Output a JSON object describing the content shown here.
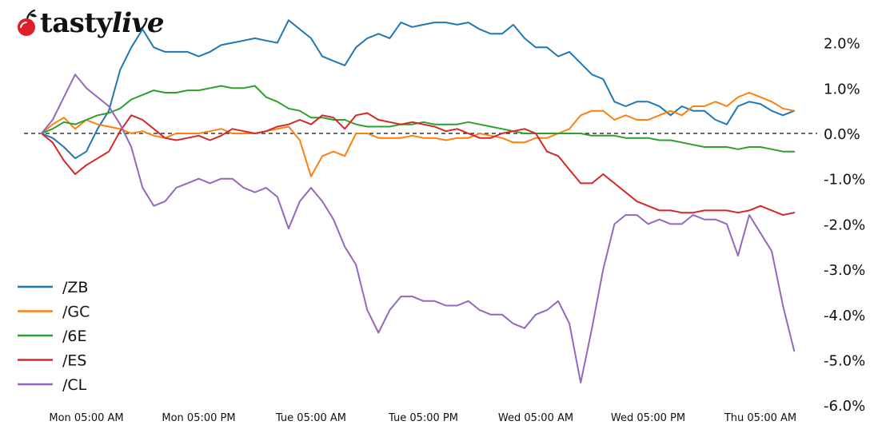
{
  "brand": {
    "logo_text_a": "tasty",
    "logo_text_b": "live",
    "logo_color": "#e11d2a"
  },
  "chart_data": {
    "type": "line",
    "title": "",
    "xlabel": "",
    "ylabel": "",
    "y_axis_position": "right",
    "ylim": [
      -6,
      2.6
    ],
    "yticks": [
      2,
      1,
      0,
      -1,
      -2,
      -3,
      -4,
      -5,
      -6
    ],
    "ytick_labels": [
      "2.0%",
      "1.0%",
      "0.0%",
      "-1.0%",
      "-2.0%",
      "-3.0%",
      "-4.0%",
      "-5.0%",
      "-6.0%"
    ],
    "xlim": [
      0,
      66
    ],
    "xticks": [
      0,
      10,
      20,
      30,
      40,
      50,
      60
    ],
    "xtick_labels": [
      "Mon 05:00 AM",
      "Mon 05:00 PM",
      "Tue 05:00 AM",
      "Tue 05:00 PM",
      "Wed 05:00 AM",
      "Wed 05:00 PM",
      "Thu 05:00 AM"
    ],
    "zero_line": "dashed",
    "grid": false,
    "legend_position": "bottom-left",
    "series": [
      {
        "name": "/ZB",
        "color": "#1f77b4",
        "x": [
          -4,
          -3,
          -2,
          -1,
          0,
          1,
          2,
          3,
          4,
          5,
          6,
          7,
          8,
          9,
          10,
          11,
          12,
          13,
          14,
          15,
          16,
          17,
          18,
          19,
          20,
          21,
          22,
          23,
          24,
          25,
          26,
          27,
          28,
          29,
          30,
          31,
          32,
          33,
          34,
          35,
          36,
          37,
          38,
          39,
          40,
          41,
          42,
          43,
          44,
          45,
          46,
          47,
          48,
          49,
          50,
          51,
          52,
          53,
          54,
          55,
          56,
          57,
          58,
          59,
          60,
          61,
          62,
          63
        ],
        "y": [
          0,
          -0.1,
          -0.3,
          -0.55,
          -0.4,
          0.1,
          0.5,
          1.4,
          1.9,
          2.3,
          1.9,
          1.8,
          1.8,
          1.8,
          1.7,
          1.8,
          1.95,
          2.0,
          2.05,
          2.1,
          2.05,
          2.0,
          2.5,
          2.3,
          2.1,
          1.7,
          1.6,
          1.5,
          1.9,
          2.1,
          2.2,
          2.1,
          2.45,
          2.35,
          2.4,
          2.45,
          2.45,
          2.4,
          2.45,
          2.3,
          2.2,
          2.2,
          2.4,
          2.1,
          1.9,
          1.9,
          1.7,
          1.8,
          1.55,
          1.3,
          1.2,
          0.7,
          0.6,
          0.7,
          0.7,
          0.6,
          0.4,
          0.6,
          0.5,
          0.5,
          0.3,
          0.2,
          0.6,
          0.7,
          0.65,
          0.5,
          0.4,
          0.5
        ]
      },
      {
        "name": "/GC",
        "color": "#ff7f0e",
        "x": [
          -4,
          -3,
          -2,
          -1,
          0,
          1,
          2,
          3,
          4,
          5,
          6,
          7,
          8,
          9,
          10,
          11,
          12,
          13,
          14,
          15,
          16,
          17,
          18,
          19,
          20,
          21,
          22,
          23,
          24,
          25,
          26,
          27,
          28,
          29,
          30,
          31,
          32,
          33,
          34,
          35,
          36,
          37,
          38,
          39,
          40,
          41,
          42,
          43,
          44,
          45,
          46,
          47,
          48,
          49,
          50,
          51,
          52,
          53,
          54,
          55,
          56,
          57,
          58,
          59,
          60,
          61,
          62,
          63
        ],
        "y": [
          0,
          0.2,
          0.35,
          0.1,
          0.3,
          0.2,
          0.15,
          0.1,
          0,
          0.05,
          -0.05,
          -0.1,
          0,
          0,
          0,
          0.05,
          0.1,
          0,
          0,
          0,
          0.05,
          0.1,
          0.15,
          -0.15,
          -0.95,
          -0.5,
          -0.4,
          -0.5,
          0,
          0,
          -0.1,
          -0.1,
          -0.1,
          -0.05,
          -0.1,
          -0.1,
          -0.15,
          -0.1,
          -0.1,
          0,
          -0.05,
          -0.1,
          -0.2,
          -0.2,
          -0.1,
          -0.1,
          0,
          0.1,
          0.4,
          0.5,
          0.5,
          0.3,
          0.4,
          0.3,
          0.3,
          0.4,
          0.5,
          0.4,
          0.6,
          0.6,
          0.7,
          0.6,
          0.8,
          0.9,
          0.8,
          0.7,
          0.55,
          0.5
        ]
      },
      {
        "name": "/6E",
        "color": "#2ca02c",
        "x": [
          -4,
          -3,
          -2,
          -1,
          0,
          1,
          2,
          3,
          4,
          5,
          6,
          7,
          8,
          9,
          10,
          11,
          12,
          13,
          14,
          15,
          16,
          17,
          18,
          19,
          20,
          21,
          22,
          23,
          24,
          25,
          26,
          27,
          28,
          29,
          30,
          31,
          32,
          33,
          34,
          35,
          36,
          37,
          38,
          39,
          40,
          41,
          42,
          43,
          44,
          45,
          46,
          47,
          48,
          49,
          50,
          51,
          52,
          53,
          54,
          55,
          56,
          57,
          58,
          59,
          60,
          61,
          62,
          63
        ],
        "y": [
          0,
          0.1,
          0.25,
          0.2,
          0.3,
          0.4,
          0.45,
          0.55,
          0.75,
          0.85,
          0.95,
          0.9,
          0.9,
          0.95,
          0.95,
          1.0,
          1.05,
          1.0,
          1.0,
          1.05,
          0.8,
          0.7,
          0.55,
          0.5,
          0.35,
          0.35,
          0.3,
          0.3,
          0.2,
          0.15,
          0.15,
          0.15,
          0.2,
          0.2,
          0.25,
          0.2,
          0.2,
          0.2,
          0.25,
          0.2,
          0.15,
          0.1,
          0.05,
          0,
          0,
          0,
          0,
          0,
          0,
          -0.05,
          -0.05,
          -0.05,
          -0.1,
          -0.1,
          -0.1,
          -0.15,
          -0.15,
          -0.2,
          -0.25,
          -0.3,
          -0.3,
          -0.3,
          -0.35,
          -0.3,
          -0.3,
          -0.35,
          -0.4,
          -0.4
        ]
      },
      {
        "name": "/ES",
        "color": "#d62728",
        "x": [
          -4,
          -3,
          -2,
          -1,
          0,
          1,
          2,
          3,
          4,
          5,
          6,
          7,
          8,
          9,
          10,
          11,
          12,
          13,
          14,
          15,
          16,
          17,
          18,
          19,
          20,
          21,
          22,
          23,
          24,
          25,
          26,
          27,
          28,
          29,
          30,
          31,
          32,
          33,
          34,
          35,
          36,
          37,
          38,
          39,
          40,
          41,
          42,
          43,
          44,
          45,
          46,
          47,
          48,
          49,
          50,
          51,
          52,
          53,
          54,
          55,
          56,
          57,
          58,
          59,
          60,
          61,
          62,
          63
        ],
        "y": [
          0,
          -0.2,
          -0.6,
          -0.9,
          -0.7,
          -0.55,
          -0.4,
          0.05,
          0.4,
          0.3,
          0.1,
          -0.1,
          -0.15,
          -0.1,
          -0.05,
          -0.15,
          -0.05,
          0.1,
          0.05,
          0,
          0.05,
          0.15,
          0.2,
          0.3,
          0.2,
          0.4,
          0.35,
          0.1,
          0.4,
          0.45,
          0.3,
          0.25,
          0.2,
          0.25,
          0.2,
          0.15,
          0.05,
          0.1,
          0,
          -0.1,
          -0.1,
          0,
          0.05,
          0.1,
          0,
          -0.4,
          -0.5,
          -0.8,
          -1.1,
          -1.1,
          -0.9,
          -1.1,
          -1.3,
          -1.5,
          -1.6,
          -1.7,
          -1.7,
          -1.75,
          -1.75,
          -1.7,
          -1.7,
          -1.7,
          -1.75,
          -1.7,
          -1.6,
          -1.7,
          -1.8,
          -1.75
        ]
      },
      {
        "name": "/CL",
        "color": "#9467bd",
        "x": [
          -4,
          -3,
          -2,
          -1,
          0,
          1,
          2,
          3,
          4,
          5,
          6,
          7,
          8,
          9,
          10,
          11,
          12,
          13,
          14,
          15,
          16,
          17,
          18,
          19,
          20,
          21,
          22,
          23,
          24,
          25,
          26,
          27,
          28,
          29,
          30,
          31,
          32,
          33,
          34,
          35,
          36,
          37,
          38,
          39,
          40,
          41,
          42,
          43,
          44,
          45,
          46,
          47,
          48,
          49,
          50,
          51,
          52,
          53,
          54,
          55,
          56,
          57,
          58,
          59,
          60,
          61,
          62,
          63
        ],
        "y": [
          0,
          0.3,
          0.8,
          1.3,
          1.0,
          0.8,
          0.6,
          0.2,
          -0.3,
          -1.2,
          -1.6,
          -1.5,
          -1.2,
          -1.1,
          -1.0,
          -1.1,
          -1.0,
          -1.0,
          -1.2,
          -1.3,
          -1.2,
          -1.4,
          -2.1,
          -1.5,
          -1.2,
          -1.5,
          -1.9,
          -2.5,
          -2.9,
          -3.9,
          -4.4,
          -3.9,
          -3.6,
          -3.6,
          -3.7,
          -3.7,
          -3.8,
          -3.8,
          -3.7,
          -3.9,
          -4.0,
          -4.0,
          -4.2,
          -4.3,
          -4.0,
          -3.9,
          -3.7,
          -4.2,
          -5.5,
          -4.3,
          -3.0,
          -2.0,
          -1.8,
          -1.8,
          -2.0,
          -1.9,
          -2.0,
          -2.0,
          -1.8,
          -1.9,
          -1.9,
          -2.0,
          -2.7,
          -1.8,
          -2.2,
          -2.6,
          -3.8,
          -4.8
        ]
      }
    ]
  }
}
